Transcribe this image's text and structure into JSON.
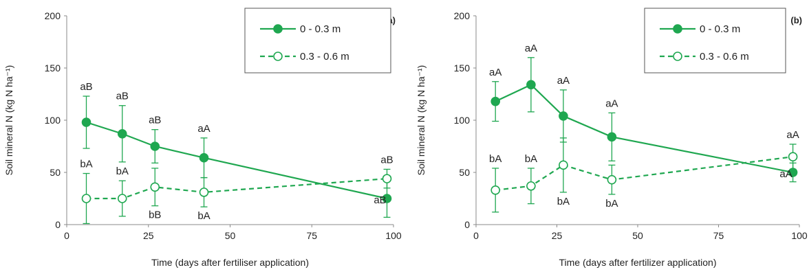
{
  "chart_data": [
    {
      "type": "line",
      "panel_label": "(a)",
      "xlabel": "Time (days after fertiliser application)",
      "ylabel": "Soil mineral N (kg N ha⁻¹)",
      "xlim": [
        0,
        100
      ],
      "ylim": [
        0,
        200
      ],
      "xticks": [
        0,
        25,
        50,
        75,
        100
      ],
      "yticks": [
        0,
        50,
        100,
        150,
        200
      ],
      "grid": false,
      "legend_position": "top-right",
      "series": [
        {
          "name": "0 - 0.3 m",
          "color": "#1fa750",
          "marker": "filled-circle",
          "linestyle": "solid",
          "x": [
            6,
            17,
            27,
            42,
            98
          ],
          "y": [
            98,
            87,
            75,
            64,
            25
          ],
          "err": [
            25,
            27,
            16,
            19,
            18
          ],
          "labels": [
            "aB",
            "aB",
            "aB",
            "aA",
            "aB"
          ]
        },
        {
          "name": "0.3 - 0.6 m",
          "color": "#1fa750",
          "marker": "open-circle",
          "linestyle": "dashed",
          "x": [
            6,
            17,
            27,
            42,
            98
          ],
          "y": [
            25,
            25,
            36,
            31,
            44
          ],
          "err": [
            24,
            17,
            18,
            14,
            9
          ],
          "labels": [
            "bA",
            "bA",
            "bB",
            "bA",
            "aB"
          ]
        }
      ]
    },
    {
      "type": "line",
      "panel_label": "(b)",
      "xlabel": "Time (days after fertilizer application)",
      "ylabel": "Soil mineral N (kg N ha⁻¹)",
      "xlim": [
        0,
        100
      ],
      "ylim": [
        0,
        200
      ],
      "xticks": [
        0,
        25,
        50,
        75,
        100
      ],
      "yticks": [
        0,
        50,
        100,
        150,
        200
      ],
      "grid": false,
      "legend_position": "top-right",
      "series": [
        {
          "name": "0 - 0.3 m",
          "color": "#1fa750",
          "marker": "filled-circle",
          "linestyle": "solid",
          "x": [
            6,
            17,
            27,
            42,
            98
          ],
          "y": [
            118,
            134,
            104,
            84,
            50
          ],
          "err": [
            19,
            26,
            25,
            23,
            9
          ],
          "labels": [
            "aA",
            "aA",
            "aA",
            "aA",
            "aA"
          ]
        },
        {
          "name": "0.3 - 0.6 m",
          "color": "#1fa750",
          "marker": "open-circle",
          "linestyle": "dashed",
          "x": [
            6,
            17,
            27,
            42,
            98
          ],
          "y": [
            33,
            37,
            57,
            43,
            65
          ],
          "err": [
            21,
            17,
            26,
            14,
            12
          ],
          "labels": [
            "bA",
            "bA",
            "bA",
            "bA",
            "aA"
          ]
        }
      ]
    }
  ]
}
